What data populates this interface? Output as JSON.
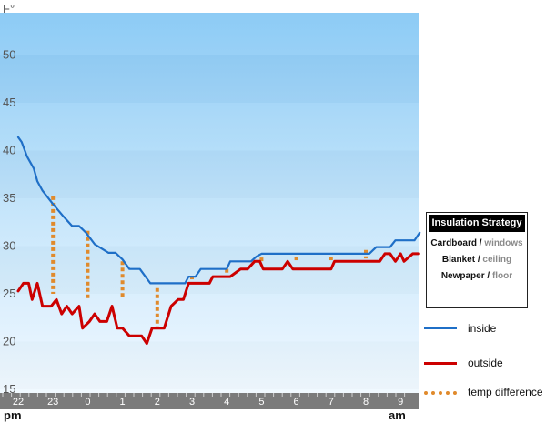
{
  "chart_data": {
    "type": "line",
    "y_unit": "F°",
    "y_ticks": [
      "15",
      "20",
      "25",
      "30",
      "35",
      "40",
      "45",
      "50"
    ],
    "ylim": [
      15,
      55
    ],
    "x_ticks": [
      "22",
      "23",
      "0",
      "1",
      "2",
      "3",
      "4",
      "5",
      "6",
      "7",
      "8",
      "9"
    ],
    "x_caption_left": "pm",
    "x_caption_right": "am",
    "series": [
      {
        "name": "inside",
        "color": "#1f6fc7",
        "points": [
          [
            22.0,
            41.4
          ],
          [
            22.1,
            40.9
          ],
          [
            22.25,
            39.4
          ],
          [
            22.45,
            38.1
          ],
          [
            22.55,
            36.8
          ],
          [
            22.7,
            35.8
          ],
          [
            23.0,
            34.4
          ],
          [
            23.3,
            33.1
          ],
          [
            23.55,
            32.1
          ],
          [
            23.75,
            32.1
          ],
          [
            23.95,
            31.4
          ],
          [
            24.2,
            30.2
          ],
          [
            24.6,
            29.3
          ],
          [
            24.8,
            29.3
          ],
          [
            25.0,
            28.6
          ],
          [
            25.2,
            27.6
          ],
          [
            25.5,
            27.6
          ],
          [
            25.8,
            26.1
          ],
          [
            26.3,
            26.1
          ],
          [
            26.8,
            26.1
          ],
          [
            26.9,
            26.8
          ],
          [
            27.1,
            26.8
          ],
          [
            27.25,
            27.6
          ],
          [
            27.5,
            27.6
          ],
          [
            28.0,
            27.6
          ],
          [
            28.1,
            28.4
          ],
          [
            28.4,
            28.4
          ],
          [
            28.7,
            28.4
          ],
          [
            28.85,
            28.9
          ],
          [
            29.0,
            29.2
          ],
          [
            29.3,
            29.2
          ],
          [
            30.0,
            29.2
          ],
          [
            31.0,
            29.2
          ],
          [
            32.1,
            29.2
          ],
          [
            32.3,
            29.9
          ],
          [
            32.7,
            29.9
          ],
          [
            32.85,
            30.6
          ],
          [
            33.4,
            30.6
          ],
          [
            33.55,
            31.4
          ]
        ]
      },
      {
        "name": "outside",
        "color": "#cc0000",
        "points": [
          [
            22.0,
            25.3
          ],
          [
            22.15,
            26.1
          ],
          [
            22.3,
            26.1
          ],
          [
            22.4,
            24.4
          ],
          [
            22.55,
            26.1
          ],
          [
            22.7,
            23.7
          ],
          [
            22.95,
            23.7
          ],
          [
            23.1,
            24.4
          ],
          [
            23.25,
            22.9
          ],
          [
            23.4,
            23.7
          ],
          [
            23.55,
            22.9
          ],
          [
            23.75,
            23.7
          ],
          [
            23.85,
            21.4
          ],
          [
            24.05,
            22.1
          ],
          [
            24.2,
            22.9
          ],
          [
            24.35,
            22.1
          ],
          [
            24.55,
            22.1
          ],
          [
            24.7,
            23.7
          ],
          [
            24.85,
            21.4
          ],
          [
            25.0,
            21.4
          ],
          [
            25.2,
            20.6
          ],
          [
            25.55,
            20.6
          ],
          [
            25.7,
            19.8
          ],
          [
            25.85,
            21.4
          ],
          [
            26.2,
            21.4
          ],
          [
            26.4,
            23.7
          ],
          [
            26.6,
            24.4
          ],
          [
            26.75,
            24.4
          ],
          [
            26.9,
            26.1
          ],
          [
            27.2,
            26.1
          ],
          [
            27.5,
            26.1
          ],
          [
            27.6,
            26.8
          ],
          [
            28.1,
            26.8
          ],
          [
            28.4,
            27.6
          ],
          [
            28.6,
            27.6
          ],
          [
            28.8,
            28.4
          ],
          [
            28.95,
            28.4
          ],
          [
            29.05,
            27.6
          ],
          [
            29.3,
            27.6
          ],
          [
            29.6,
            27.6
          ],
          [
            29.75,
            28.4
          ],
          [
            29.9,
            27.6
          ],
          [
            30.2,
            27.6
          ],
          [
            31.0,
            27.6
          ],
          [
            31.1,
            28.4
          ],
          [
            32.05,
            28.4
          ],
          [
            32.4,
            28.4
          ],
          [
            32.55,
            29.2
          ],
          [
            32.7,
            29.2
          ],
          [
            32.85,
            28.4
          ],
          [
            33.0,
            29.2
          ],
          [
            33.1,
            28.4
          ],
          [
            33.35,
            29.2
          ],
          [
            33.5,
            29.2
          ]
        ]
      }
    ],
    "difference_markers": [
      {
        "x": 23.0,
        "low": 25.0,
        "high": 35.2
      },
      {
        "x": 24.0,
        "low": 24.4,
        "high": 31.6
      },
      {
        "x": 25.0,
        "low": 24.5,
        "high": 28.4
      },
      {
        "x": 26.0,
        "low": 21.5,
        "high": 25.6
      },
      {
        "x": 27.0,
        "low": 26.4,
        "high": 26.9
      },
      {
        "x": 28.0,
        "low": 27.1,
        "high": 27.6
      },
      {
        "x": 29.0,
        "low": 28.2,
        "high": 28.8
      },
      {
        "x": 30.0,
        "low": 28.3,
        "high": 28.9
      },
      {
        "x": 31.0,
        "low": 28.3,
        "high": 28.9
      },
      {
        "x": 32.0,
        "low": 28.7,
        "high": 29.6
      }
    ],
    "legend": [
      {
        "label": "inside",
        "color": "#1f6fc7"
      },
      {
        "label": "outside",
        "color": "#cc0000"
      },
      {
        "label": "temp difference",
        "color": "#e08a2c"
      }
    ],
    "insulation_strategy": {
      "title": "Insulation Strategy",
      "rows": [
        {
          "material": "Cardboard",
          "separator": " / ",
          "target": "windows"
        },
        {
          "material": "Blanket",
          "separator": " / ",
          "target": "ceiling"
        },
        {
          "material": "Newpaper",
          "separator": " / ",
          "target": "floor"
        }
      ]
    },
    "grid": false,
    "legend_position": "right"
  }
}
